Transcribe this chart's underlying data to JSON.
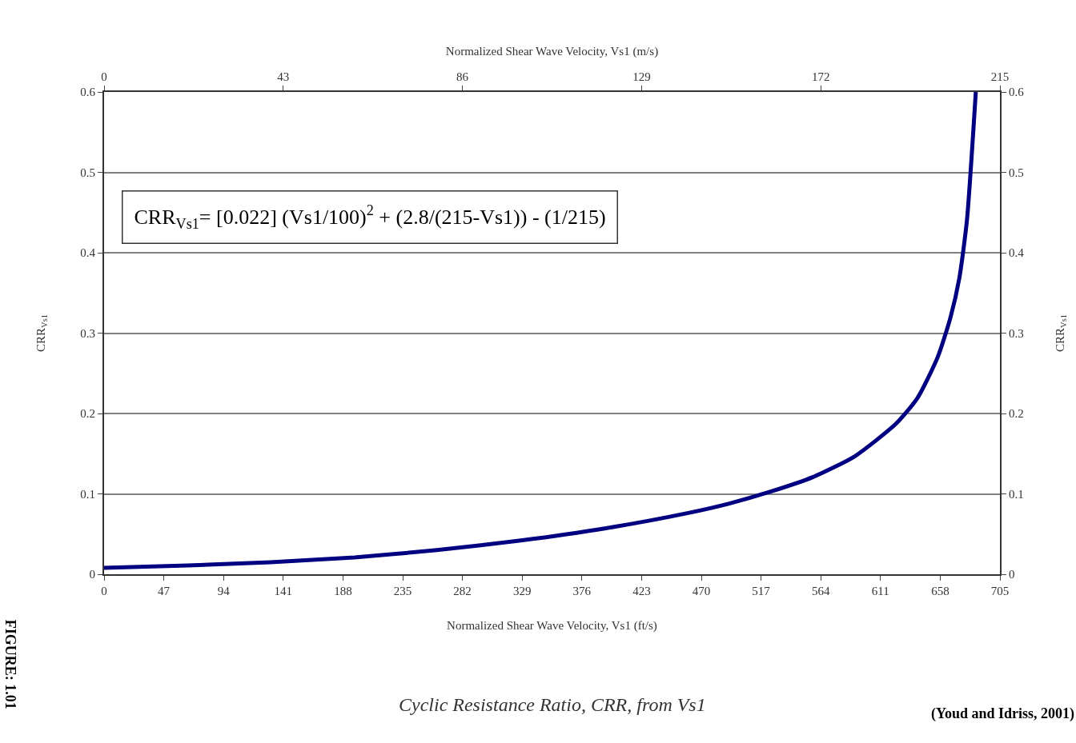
{
  "chart_data": {
    "type": "line",
    "title": "Cyclic Resistance Ratio, CRR, from Vs1",
    "xlabel": "Normalized Shear Wave Velocity, Vs1 (ft/s)",
    "x2label": "Normalized Shear Wave Velocity, Vs1 (m/s)",
    "ylabel": "CRR$_{Vs1}$",
    "y2label": "CRR$_{Vs1}$",
    "x": [
      0,
      66,
      131,
      197,
      262,
      328,
      394,
      459,
      492,
      525,
      558,
      591,
      623,
      640,
      656,
      666,
      673,
      679,
      686
    ],
    "series": [
      {
        "color": "#000080",
        "values": [
          0.008,
          0.011,
          0.015,
          0.021,
          0.03,
          0.042,
          0.057,
          0.076,
          0.088,
          0.103,
          0.121,
          0.147,
          0.187,
          0.219,
          0.27,
          0.319,
          0.368,
          0.44,
          0.6
        ]
      }
    ],
    "xlim": [
      0,
      705
    ],
    "xticks": [
      0,
      47,
      94,
      141,
      188,
      235,
      282,
      329,
      376,
      423,
      470,
      517,
      564,
      611,
      658,
      705
    ],
    "x2lim": [
      0,
      215
    ],
    "x2ticks": [
      0,
      43,
      86,
      129,
      172,
      215
    ],
    "ylim": [
      0,
      0.6
    ],
    "yticks": [
      0,
      0.1,
      0.2,
      0.3,
      0.4,
      0.5,
      0.6
    ],
    "y2lim": [
      0,
      0.6
    ],
    "y2ticks": [
      0,
      0.1,
      0.2,
      0.3,
      0.4,
      0.5,
      0.6
    ],
    "grid": "y",
    "marker": "none",
    "line_style": "solid",
    "annotations": [
      "CRR$_{Vs1}$= [0.022] (Vs1/100)$^{2}$ + (2.8/(215-Vs1)) - (1/215)",
      "(Youd and Idriss, 2001)",
      "FIGURE: 1.01"
    ]
  }
}
